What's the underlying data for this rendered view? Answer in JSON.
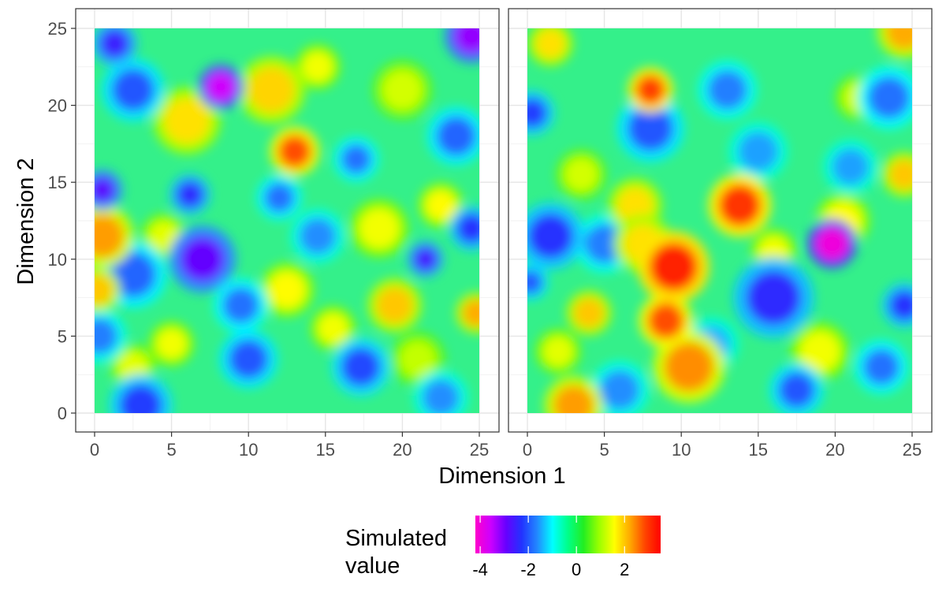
{
  "chart_data": {
    "type": "heatmap",
    "layout": "two-panel facet",
    "xlabel": "Dimension 1",
    "ylabel": "Dimension 2",
    "xlim": [
      0,
      25
    ],
    "ylim": [
      0,
      25
    ],
    "x_ticks": [
      0,
      5,
      10,
      15,
      20,
      25
    ],
    "y_ticks": [
      0,
      5,
      10,
      15,
      20,
      25
    ],
    "grid": true,
    "legend": {
      "title_lines": [
        "Simulated",
        "value"
      ],
      "placement": "bottom",
      "range": [
        -4.2,
        3.5
      ],
      "ticks": [
        -4,
        -2,
        0,
        2
      ],
      "colors": [
        "#ff00cc",
        "#cc00ff",
        "#6600ff",
        "#2233ff",
        "#2288ff",
        "#00ffff",
        "#00ff88",
        "#22ee22",
        "#99ff00",
        "#ffff00",
        "#ffaa00",
        "#ff4400",
        "#ff0000"
      ]
    },
    "panels": [
      {
        "name": "left",
        "features": [
          {
            "x": 8.2,
            "y": 21.2,
            "value": -3.6,
            "radius": 1.0
          },
          {
            "x": 0.5,
            "y": 14.5,
            "value": -2.8,
            "radius": 0.9
          },
          {
            "x": 7.0,
            "y": 10.0,
            "value": -2.9,
            "radius": 1.5
          },
          {
            "x": 6.2,
            "y": 14.2,
            "value": -2.4,
            "radius": 0.9
          },
          {
            "x": 24.5,
            "y": 24.5,
            "value": -3.2,
            "radius": 1.2
          },
          {
            "x": 1.3,
            "y": 24.0,
            "value": -2.5,
            "radius": 1.0
          },
          {
            "x": 21.5,
            "y": 10.0,
            "value": -2.6,
            "radius": 0.8
          },
          {
            "x": 2.5,
            "y": 21.0,
            "value": -2.0,
            "radius": 1.4
          },
          {
            "x": 3.0,
            "y": 0.5,
            "value": -2.2,
            "radius": 1.4
          },
          {
            "x": 10.0,
            "y": 3.5,
            "value": -2.0,
            "radius": 1.3
          },
          {
            "x": 17.3,
            "y": 3.0,
            "value": -2.1,
            "radius": 1.3
          },
          {
            "x": 2.5,
            "y": 9.0,
            "value": -1.9,
            "radius": 1.5
          },
          {
            "x": 24.5,
            "y": 12.0,
            "value": -2.3,
            "radius": 1.0
          },
          {
            "x": 23.5,
            "y": 18.0,
            "value": -1.9,
            "radius": 1.3
          },
          {
            "x": 9.5,
            "y": 7.0,
            "value": -1.8,
            "radius": 1.2
          },
          {
            "x": 14.5,
            "y": 11.5,
            "value": -1.6,
            "radius": 1.2
          },
          {
            "x": 17.0,
            "y": 16.5,
            "value": -1.8,
            "radius": 1.0
          },
          {
            "x": 0.3,
            "y": 5.0,
            "value": -1.7,
            "radius": 1.2
          },
          {
            "x": 12.0,
            "y": 14.0,
            "value": -1.8,
            "radius": 1.0
          },
          {
            "x": 22.5,
            "y": 1.0,
            "value": -1.6,
            "radius": 1.2
          },
          {
            "x": 13.0,
            "y": 17.0,
            "value": 2.8,
            "radius": 1.1
          },
          {
            "x": 0.5,
            "y": 11.5,
            "value": 2.3,
            "radius": 1.4
          },
          {
            "x": 19.5,
            "y": 7.0,
            "value": 2.0,
            "radius": 1.2
          },
          {
            "x": 11.5,
            "y": 21.0,
            "value": 1.9,
            "radius": 1.5
          },
          {
            "x": 6.0,
            "y": 19.0,
            "value": 1.8,
            "radius": 1.5
          },
          {
            "x": 0.2,
            "y": 8.0,
            "value": 2.0,
            "radius": 1.0
          },
          {
            "x": 24.8,
            "y": 6.5,
            "value": 2.2,
            "radius": 0.9
          },
          {
            "x": 12.5,
            "y": 8.0,
            "value": 1.6,
            "radius": 1.2
          },
          {
            "x": 5.0,
            "y": 4.5,
            "value": 1.5,
            "radius": 1.0
          },
          {
            "x": 22.5,
            "y": 13.5,
            "value": 1.6,
            "radius": 1.0
          },
          {
            "x": 18.5,
            "y": 12.0,
            "value": 1.5,
            "radius": 1.3
          },
          {
            "x": 4.5,
            "y": 11.5,
            "value": 1.4,
            "radius": 1.0
          },
          {
            "x": 15.5,
            "y": 5.5,
            "value": 1.5,
            "radius": 1.0
          },
          {
            "x": 14.5,
            "y": 22.5,
            "value": 1.5,
            "radius": 1.0
          },
          {
            "x": 20.0,
            "y": 21.0,
            "value": 1.3,
            "radius": 1.3
          },
          {
            "x": 2.5,
            "y": 3.0,
            "value": 1.4,
            "radius": 1.0
          },
          {
            "x": 21.0,
            "y": 3.5,
            "value": 1.2,
            "radius": 1.2
          }
        ]
      },
      {
        "name": "right",
        "features": [
          {
            "x": 19.8,
            "y": 11.0,
            "value": -4.0,
            "radius": 1.1
          },
          {
            "x": 16.0,
            "y": 7.5,
            "value": -2.4,
            "radius": 1.8
          },
          {
            "x": 1.5,
            "y": 11.5,
            "value": -2.3,
            "radius": 1.5
          },
          {
            "x": 8.0,
            "y": 18.5,
            "value": -2.0,
            "radius": 1.5
          },
          {
            "x": 0.3,
            "y": 19.5,
            "value": -2.2,
            "radius": 1.0
          },
          {
            "x": 24.5,
            "y": 7.0,
            "value": -2.3,
            "radius": 1.0
          },
          {
            "x": 23.5,
            "y": 20.5,
            "value": -1.8,
            "radius": 1.4
          },
          {
            "x": 13.0,
            "y": 21.0,
            "value": -1.7,
            "radius": 1.3
          },
          {
            "x": 5.0,
            "y": 11.0,
            "value": -1.7,
            "radius": 1.3
          },
          {
            "x": 17.5,
            "y": 1.5,
            "value": -2.0,
            "radius": 1.2
          },
          {
            "x": 23.0,
            "y": 3.0,
            "value": -1.8,
            "radius": 1.2
          },
          {
            "x": 0.2,
            "y": 8.5,
            "value": -2.0,
            "radius": 0.8
          },
          {
            "x": 15.0,
            "y": 17.0,
            "value": -1.5,
            "radius": 1.3
          },
          {
            "x": 21.0,
            "y": 16.0,
            "value": -1.5,
            "radius": 1.2
          },
          {
            "x": 6.0,
            "y": 1.5,
            "value": -1.6,
            "radius": 1.3
          },
          {
            "x": 12.0,
            "y": 4.5,
            "value": -1.4,
            "radius": 1.2
          },
          {
            "x": 9.5,
            "y": 9.5,
            "value": 3.2,
            "radius": 1.6
          },
          {
            "x": 13.8,
            "y": 13.5,
            "value": 3.0,
            "radius": 1.4
          },
          {
            "x": 9.0,
            "y": 6.0,
            "value": 2.8,
            "radius": 1.2
          },
          {
            "x": 8.0,
            "y": 21.0,
            "value": 2.9,
            "radius": 1.0
          },
          {
            "x": 10.5,
            "y": 3.0,
            "value": 2.4,
            "radius": 1.6
          },
          {
            "x": 3.0,
            "y": 0.5,
            "value": 2.3,
            "radius": 1.3
          },
          {
            "x": 24.5,
            "y": 24.8,
            "value": 2.2,
            "radius": 1.2
          },
          {
            "x": 24.5,
            "y": 15.5,
            "value": 2.0,
            "radius": 1.0
          },
          {
            "x": 7.0,
            "y": 13.5,
            "value": 1.8,
            "radius": 1.2
          },
          {
            "x": 4.0,
            "y": 6.5,
            "value": 2.0,
            "radius": 1.0
          },
          {
            "x": 1.5,
            "y": 24.0,
            "value": 1.8,
            "radius": 1.0
          },
          {
            "x": 20.5,
            "y": 12.5,
            "value": 1.6,
            "radius": 1.2
          },
          {
            "x": 7.5,
            "y": 11.0,
            "value": 1.8,
            "radius": 1.3
          },
          {
            "x": 19.0,
            "y": 4.0,
            "value": 1.5,
            "radius": 1.3
          },
          {
            "x": 16.0,
            "y": 10.5,
            "value": 1.5,
            "radius": 1.0
          },
          {
            "x": 3.5,
            "y": 15.5,
            "value": 1.3,
            "radius": 1.1
          },
          {
            "x": 21.5,
            "y": 20.5,
            "value": 1.3,
            "radius": 1.0
          },
          {
            "x": 2.0,
            "y": 4.0,
            "value": 1.4,
            "radius": 1.0
          }
        ]
      }
    ]
  }
}
